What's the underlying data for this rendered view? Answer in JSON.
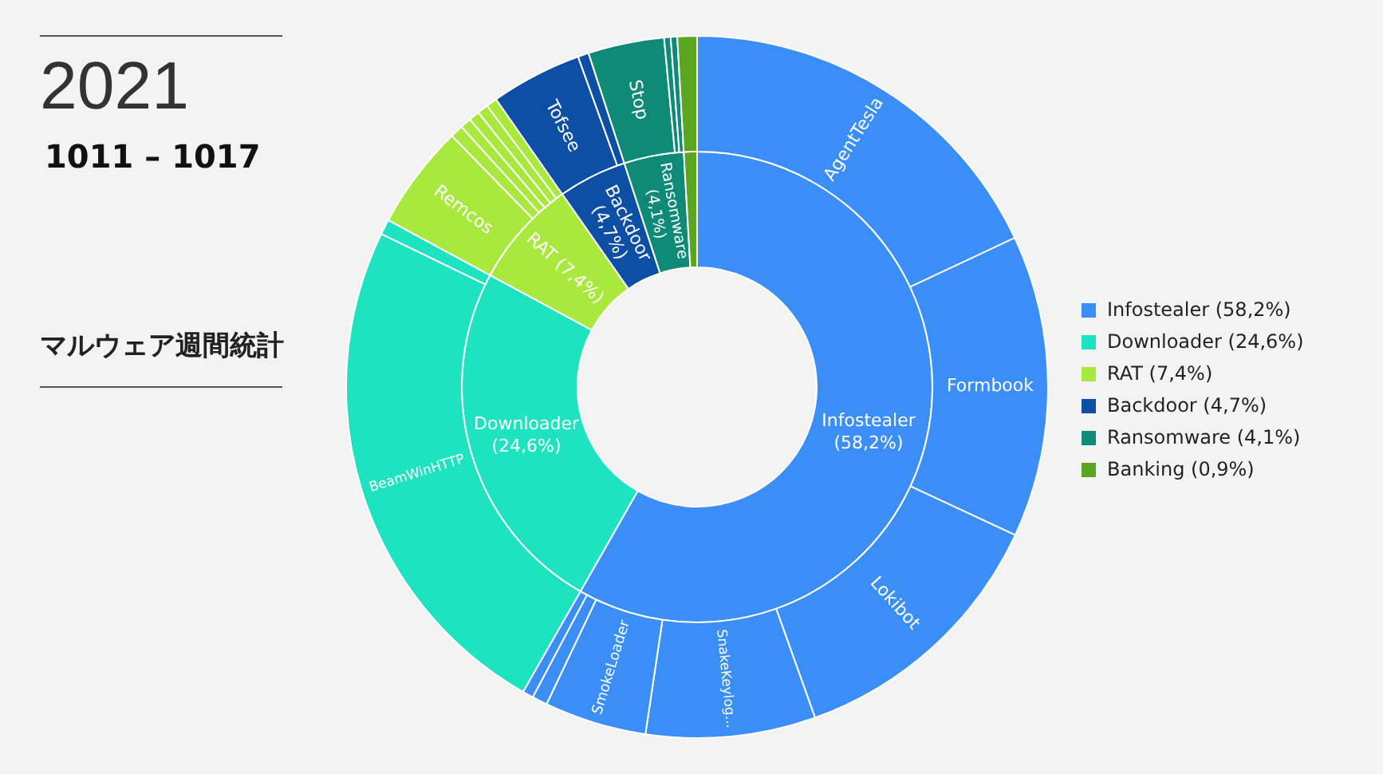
{
  "chart_data": [
    {
      "type": "donut",
      "title": "2021",
      "subtitle": "1011 – 1017",
      "annotations": [
        "マルウェア週間統計"
      ],
      "legend": "right",
      "categories": [
        "Infostealer (58,2%)",
        "Downloader (24,6%)",
        "RAT (7,4%)",
        "Backdoor (4,7%)",
        "Ransomware (4,1%)",
        "Banking (0,9%)"
      ],
      "values": [
        58.2,
        24.6,
        7.4,
        4.7,
        4.1,
        0.9
      ],
      "colors": [
        "#3a8ef5",
        "#1ee3c1",
        "#a9e83c",
        "#0d4fa4",
        "#108a78",
        "#5aa620"
      ]
    },
    {
      "type": "donut",
      "categories": [
        "AgentTesla",
        "Formbook",
        "Lokibot",
        "SnakeKeylog...",
        "SmokeLoader",
        null,
        null,
        "BeamWinHTTP",
        null,
        "Remcos",
        null,
        null,
        null,
        null,
        null,
        "Tofsee",
        null,
        "Stop",
        null,
        null,
        null
      ],
      "values": [
        18.0,
        13.9,
        12.6,
        7.8,
        4.7,
        0.7,
        0.5,
        23.9,
        0.7,
        4.8,
        0.6,
        0.5,
        0.5,
        0.5,
        0.5,
        4.2,
        0.5,
        3.5,
        0.3,
        0.3,
        0.9
      ],
      "colors": [
        "#3a8ef5",
        "#3a8ef5",
        "#3a8ef5",
        "#3a8ef5",
        "#3a8ef5",
        "#3a8ef5",
        "#3a8ef5",
        "#1ee3c1",
        "#1ee3c1",
        "#a9e83c",
        "#a9e83c",
        "#a9e83c",
        "#a9e83c",
        "#a9e83c",
        "#a9e83c",
        "#0d4fa4",
        "#0d4fa4",
        "#108a78",
        "#108a78",
        "#108a78",
        "#5aa620"
      ]
    }
  ]
}
